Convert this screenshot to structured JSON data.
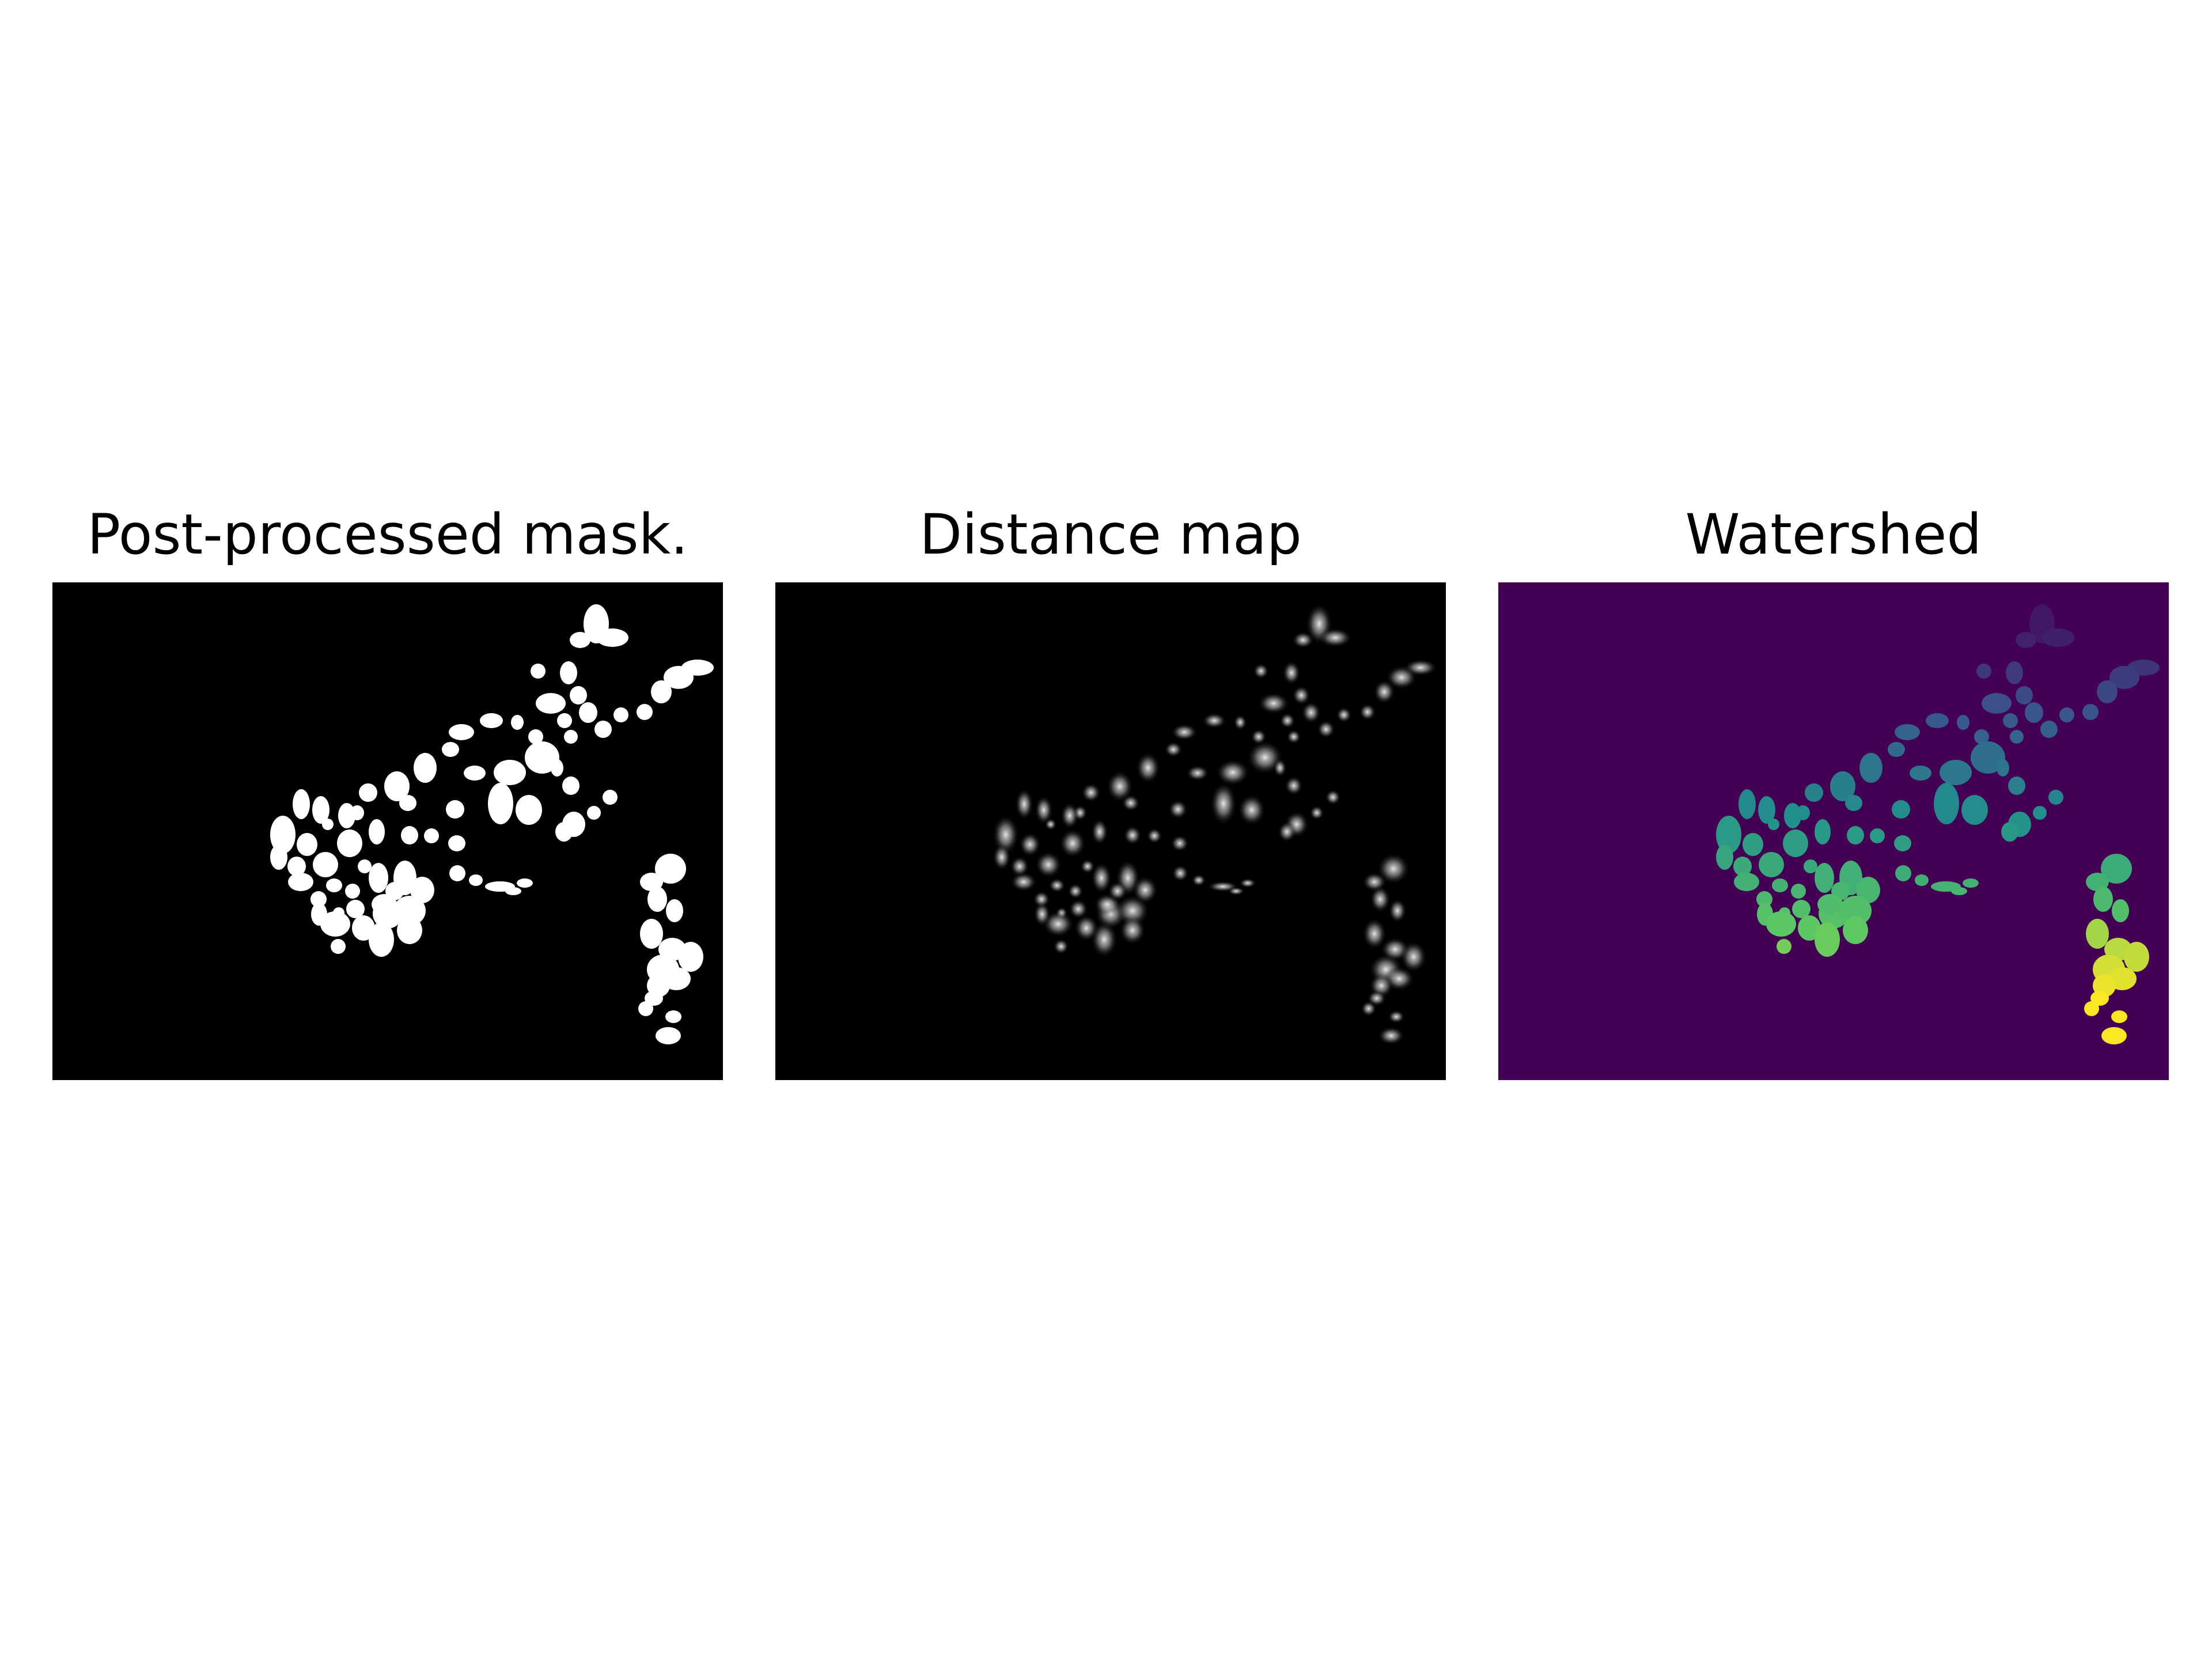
{
  "figure": {
    "panels": [
      {
        "title": "Post-processed mask.",
        "kind": "binary-mask",
        "background": "#000000",
        "foreground": "#ffffff"
      },
      {
        "title": "Distance map",
        "kind": "distance-map",
        "background": "#000000",
        "foreground": "#ffffff"
      },
      {
        "title": "Watershed",
        "kind": "label-map",
        "background": "#440154",
        "colormap": "viridis"
      }
    ]
  }
}
